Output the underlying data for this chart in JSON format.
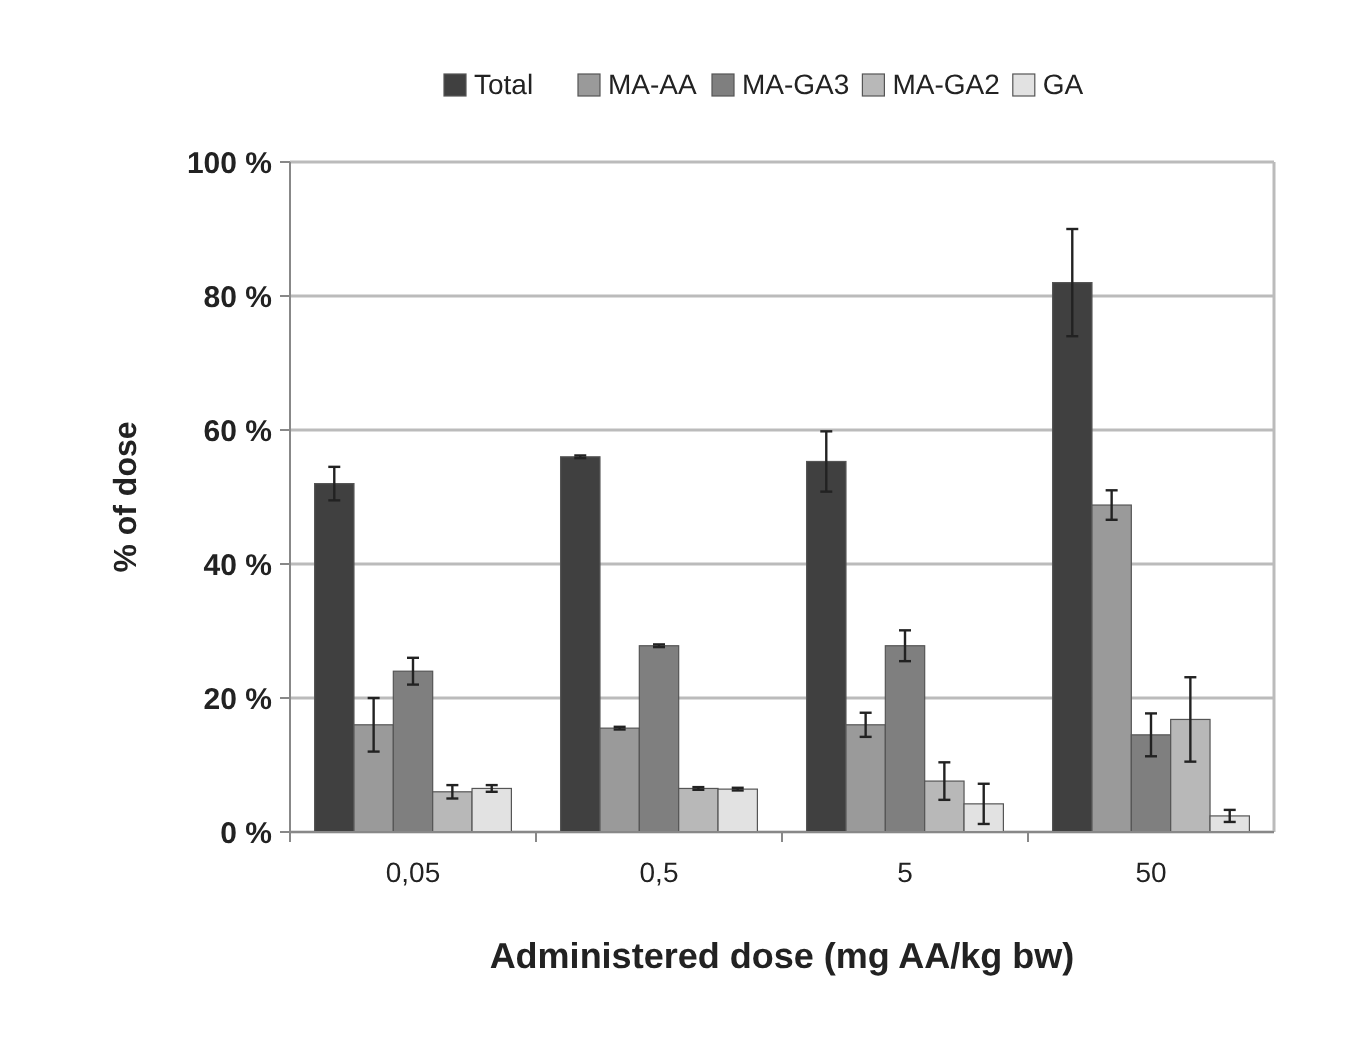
{
  "chart_data": {
    "type": "bar",
    "xlabel": "Administered dose (mg AA/kg bw)",
    "ylabel": "% of dose",
    "categories": [
      "0,05",
      "0,5",
      "5",
      "50"
    ],
    "series": [
      {
        "name": "Total",
        "color": "#404040",
        "values": [
          52,
          56,
          55.3,
          82
        ],
        "errors": [
          2.5,
          0.2,
          4.5,
          8
        ]
      },
      {
        "name": "MA-AA",
        "color": "#9a9a9a",
        "values": [
          16,
          15.5,
          16,
          48.8
        ],
        "errors": [
          4,
          0.2,
          1.8,
          2.2
        ]
      },
      {
        "name": "MA-GA3",
        "color": "#7f7f7f",
        "values": [
          24,
          27.8,
          27.8,
          14.5
        ],
        "errors": [
          2,
          0.2,
          2.3,
          3.2
        ]
      },
      {
        "name": "MA-GA2",
        "color": "#b8b8b8",
        "values": [
          6,
          6.5,
          7.6,
          16.8
        ],
        "errors": [
          1,
          0.2,
          2.8,
          6.3
        ]
      },
      {
        "name": "GA",
        "color": "#e2e2e2",
        "values": [
          6.5,
          6.4,
          4.2,
          2.4
        ],
        "errors": [
          0.5,
          0.2,
          3,
          0.9
        ]
      }
    ],
    "ylim": [
      0,
      100
    ],
    "yticks": [
      {
        "value": 0,
        "label": "0 %"
      },
      {
        "value": 20,
        "label": "20 %"
      },
      {
        "value": 40,
        "label": "40 %"
      },
      {
        "value": 60,
        "label": "60 %"
      },
      {
        "value": 80,
        "label": "80 %"
      },
      {
        "value": 100,
        "label": "100 %"
      }
    ],
    "grid": "y",
    "legend": "top"
  }
}
